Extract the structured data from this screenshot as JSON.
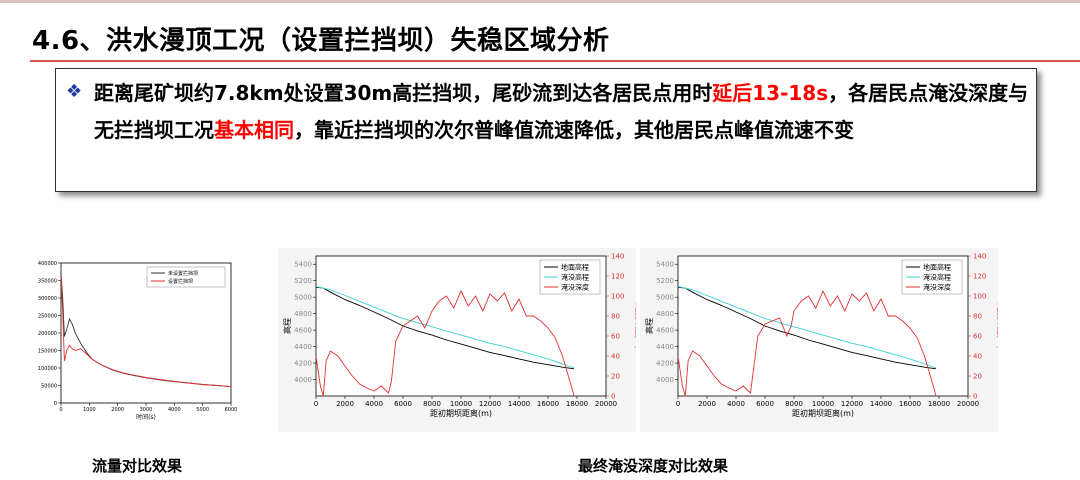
{
  "slide": {
    "title": "4.6、洪水漫顶工况（设置拦挡坝）失稳区域分析",
    "accent_color": "#d9534f",
    "box": {
      "bullet_icon": "diamond-bullet-icon",
      "t1": "距离尾矿坝约7.8km处设置30m高拦挡坝，尾砂流到达各居民点用时",
      "t2": "延后13-18s",
      "t3": "，各居民点淹没深度与无拦挡坝工况",
      "t4": "基本相同",
      "t5": "，靠近拦挡坝的次尔普峰值流速降低，其他居民点峰值流速不变",
      "highlight_color": "#ff0000"
    },
    "captions": {
      "left": "流量对比效果",
      "right": "最终淹没深度对比效果"
    }
  },
  "chart_data": [
    {
      "type": "line",
      "xlabel": "时间(s)",
      "ylabel": "流量(m³/s)",
      "xlim": [
        0,
        6000
      ],
      "ylim": [
        0,
        400000
      ],
      "xticks": [
        "0",
        "1000",
        "2000",
        "3000",
        "4000",
        "5000",
        "6000"
      ],
      "yticks": [
        "0",
        "50000",
        "100000",
        "150000",
        "200000",
        "250000",
        "300000",
        "350000",
        "400000"
      ],
      "legend": "top-right",
      "series": [
        {
          "name": "未设置拦挡坝",
          "color": "#333333",
          "x": [
            0,
            60,
            120,
            200,
            300,
            400,
            500,
            700,
            900,
            1100,
            1400,
            1800,
            2200,
            2600,
            3000,
            3500,
            4000,
            4500,
            5000,
            5500,
            6000
          ],
          "y": [
            370000,
            300000,
            190000,
            210000,
            240000,
            225000,
            200000,
            170000,
            145000,
            125000,
            110000,
            95000,
            85000,
            78000,
            72000,
            66000,
            61000,
            57000,
            53000,
            50000,
            47000
          ]
        },
        {
          "name": "设置拦挡坝",
          "color": "#e03030",
          "x": [
            0,
            60,
            120,
            200,
            300,
            400,
            500,
            700,
            900,
            1100,
            1400,
            1800,
            2200,
            2600,
            3000,
            3500,
            4000,
            4500,
            5000,
            5500,
            6000
          ],
          "y": [
            360000,
            260000,
            120000,
            150000,
            165000,
            155000,
            150000,
            155000,
            140000,
            125000,
            110000,
            96000,
            86000,
            79000,
            73000,
            67000,
            62000,
            57000,
            53000,
            50000,
            47000
          ]
        }
      ]
    },
    {
      "type": "line",
      "xlabel": "距初期坝距离(m)",
      "ylabel": "高程",
      "ylabel_right": "淹没深度(m)",
      "xlim": [
        0,
        20000
      ],
      "ylim": [
        3800,
        5500
      ],
      "ylim_right": [
        0,
        140
      ],
      "xticks": [
        "0",
        "2000",
        "4000",
        "6000",
        "8000",
        "10000",
        "12000",
        "14000",
        "16000",
        "18000",
        "20000"
      ],
      "yticks": [
        "4000",
        "4200",
        "4400",
        "4600",
        "4800",
        "5000",
        "5200",
        "5400"
      ],
      "yticks_right": [
        "0",
        "20",
        "40",
        "60",
        "80",
        "100",
        "120",
        "140"
      ],
      "legend": "top-right",
      "series": [
        {
          "name": "地面高程",
          "color": "#000000",
          "axis": "left",
          "x": [
            0,
            500,
            1000,
            2000,
            3000,
            4000,
            5000,
            6000,
            7000,
            8000,
            9000,
            10000,
            11000,
            12000,
            13000,
            14000,
            15000,
            16000,
            17000,
            17800
          ],
          "y": [
            5120,
            5110,
            5060,
            4970,
            4900,
            4820,
            4740,
            4650,
            4590,
            4540,
            4480,
            4430,
            4380,
            4330,
            4290,
            4250,
            4210,
            4180,
            4150,
            4130
          ]
        },
        {
          "name": "淹没高程",
          "color": "#3fd0d0",
          "axis": "left",
          "x": [
            0,
            1000,
            2000,
            3000,
            4000,
            5000,
            6000,
            7000,
            8000,
            9000,
            10000,
            11000,
            12000,
            13000,
            14000,
            15000,
            16000,
            17000,
            17800
          ],
          "y": [
            5130,
            5090,
            5020,
            4950,
            4880,
            4810,
            4740,
            4690,
            4640,
            4590,
            4540,
            4490,
            4440,
            4400,
            4350,
            4300,
            4250,
            4190,
            4140
          ]
        },
        {
          "name": "淹没深度",
          "color": "#e03030",
          "axis": "right",
          "x": [
            0,
            300,
            500,
            700,
            1000,
            1500,
            2000,
            2500,
            3000,
            3500,
            4000,
            4500,
            5000,
            5200,
            5500,
            6000,
            6500,
            7000,
            7500,
            8000,
            8500,
            9000,
            9500,
            10000,
            10500,
            11000,
            11500,
            12000,
            12500,
            13000,
            13500,
            14000,
            14500,
            15000,
            15500,
            16000,
            16500,
            17000,
            17500,
            17800
          ],
          "y": [
            40,
            10,
            0,
            35,
            45,
            40,
            30,
            20,
            12,
            8,
            5,
            10,
            3,
            15,
            55,
            70,
            75,
            80,
            68,
            85,
            95,
            100,
            88,
            105,
            90,
            100,
            85,
            102,
            95,
            103,
            85,
            97,
            80,
            80,
            75,
            68,
            58,
            40,
            15,
            0
          ]
        }
      ]
    },
    {
      "type": "line",
      "xlabel": "距初期坝距离(m)",
      "ylabel": "高程",
      "ylabel_right": "淹没深度(m)",
      "xlim": [
        0,
        20000
      ],
      "ylim": [
        3800,
        5500
      ],
      "ylim_right": [
        0,
        140
      ],
      "xticks": [
        "0",
        "2000",
        "4000",
        "6000",
        "8000",
        "10000",
        "12000",
        "14000",
        "16000",
        "18000",
        "20000"
      ],
      "yticks": [
        "4000",
        "4200",
        "4400",
        "4600",
        "4800",
        "5000",
        "5200",
        "5400"
      ],
      "yticks_right": [
        "0",
        "20",
        "40",
        "60",
        "80",
        "100",
        "120",
        "140"
      ],
      "legend": "top-right",
      "series": [
        {
          "name": "地面高程",
          "color": "#000000",
          "axis": "left",
          "x": [
            0,
            500,
            1000,
            2000,
            3000,
            4000,
            5000,
            6000,
            7000,
            8000,
            9000,
            10000,
            11000,
            12000,
            13000,
            14000,
            15000,
            16000,
            17000,
            17800
          ],
          "y": [
            5120,
            5110,
            5060,
            4970,
            4900,
            4820,
            4740,
            4650,
            4590,
            4540,
            4480,
            4430,
            4380,
            4330,
            4290,
            4250,
            4210,
            4180,
            4150,
            4130
          ]
        },
        {
          "name": "淹没高程",
          "color": "#3fd0d0",
          "axis": "left",
          "x": [
            0,
            1000,
            2000,
            3000,
            4000,
            5000,
            6000,
            7000,
            8000,
            9000,
            10000,
            11000,
            12000,
            13000,
            14000,
            15000,
            16000,
            17000,
            17800
          ],
          "y": [
            5130,
            5090,
            5020,
            4950,
            4880,
            4810,
            4740,
            4690,
            4640,
            4590,
            4540,
            4490,
            4440,
            4400,
            4350,
            4300,
            4250,
            4190,
            4140
          ]
        },
        {
          "name": "淹没深度",
          "color": "#e03030",
          "axis": "right",
          "x": [
            0,
            300,
            500,
            700,
            1000,
            1500,
            2000,
            2500,
            3000,
            3500,
            4000,
            4500,
            5000,
            5500,
            6000,
            6500,
            7000,
            7500,
            7800,
            8000,
            8500,
            9000,
            9500,
            10000,
            10500,
            11000,
            11500,
            12000,
            12500,
            13000,
            13500,
            14000,
            14500,
            15000,
            15500,
            16000,
            16500,
            17000,
            17500,
            17800
          ],
          "y": [
            40,
            10,
            0,
            35,
            45,
            40,
            30,
            20,
            12,
            8,
            5,
            10,
            3,
            60,
            72,
            75,
            78,
            60,
            70,
            85,
            95,
            100,
            88,
            105,
            90,
            100,
            85,
            102,
            95,
            103,
            85,
            97,
            80,
            80,
            75,
            68,
            58,
            40,
            15,
            0
          ]
        }
      ]
    }
  ]
}
